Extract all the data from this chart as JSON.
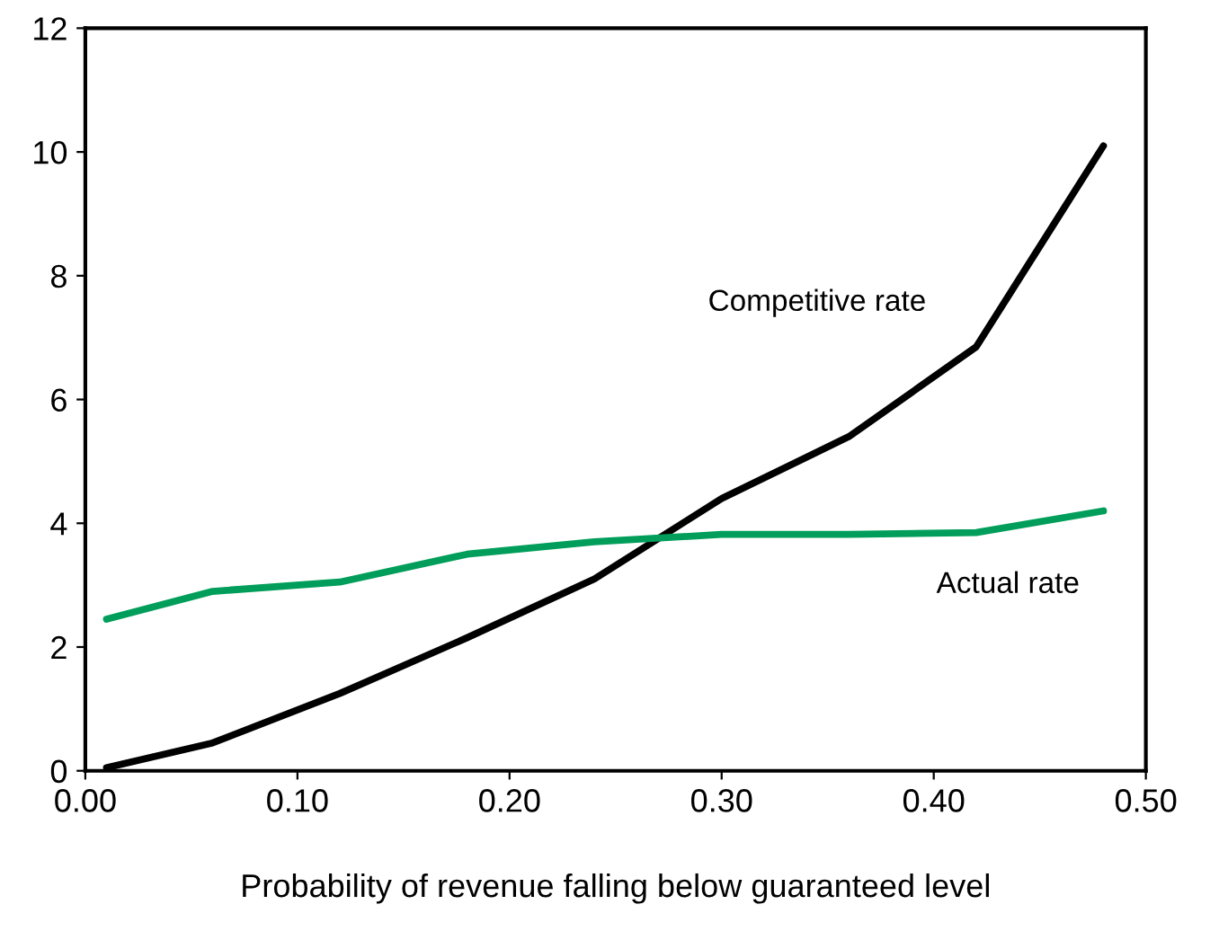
{
  "chart_data": {
    "type": "line",
    "xlabel": "Probability of revenue falling below guaranteed level",
    "series": [
      {
        "name": "Competitive rate",
        "color": "#000000",
        "x": [
          0.01,
          0.06,
          0.12,
          0.18,
          0.24,
          0.3,
          0.36,
          0.42,
          0.48
        ],
        "values": [
          0.05,
          0.45,
          1.25,
          2.15,
          3.1,
          4.4,
          5.4,
          6.85,
          10.1
        ]
      },
      {
        "name": "Actual rate",
        "color": "#009e5a",
        "x": [
          0.01,
          0.06,
          0.12,
          0.18,
          0.24,
          0.3,
          0.36,
          0.42,
          0.48
        ],
        "values": [
          2.45,
          2.9,
          3.05,
          3.5,
          3.7,
          3.82,
          3.82,
          3.85,
          4.2
        ]
      }
    ],
    "xlim": [
      0,
      0.5
    ],
    "xticks": [
      {
        "value": 0,
        "label": "0.00"
      },
      {
        "value": 0.1,
        "label": "0.10"
      },
      {
        "value": 0.2,
        "label": "0.20"
      },
      {
        "value": 0.3,
        "label": "0.30"
      },
      {
        "value": 0.4,
        "label": "0.40"
      },
      {
        "value": 0.5,
        "label": "0.50"
      }
    ],
    "ylim": [
      0,
      12
    ],
    "yticks": [
      0,
      2,
      4,
      6,
      8,
      10,
      12
    ],
    "grid": false,
    "legend": false
  }
}
